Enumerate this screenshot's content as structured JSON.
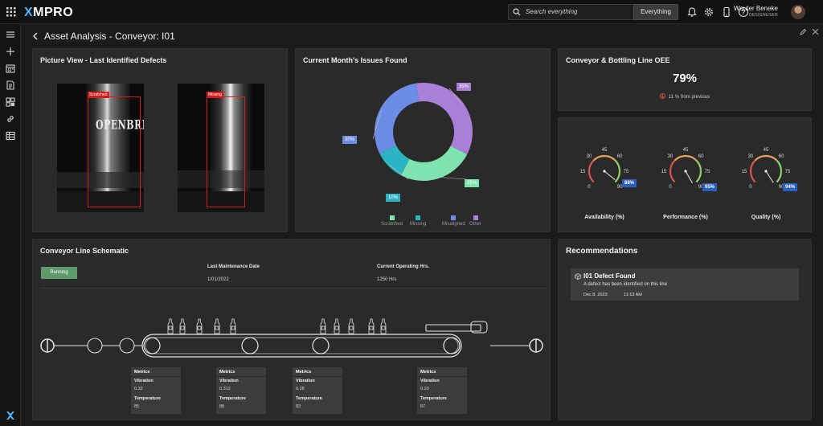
{
  "app": {
    "logo": "MPRO",
    "logo_x": "X"
  },
  "search": {
    "placeholder": "Search everything",
    "scope": "Everything"
  },
  "user": {
    "name": "Wouter Beneke",
    "role": "DESIGNUSER"
  },
  "page": {
    "title": "Asset Analysis - Conveyor: I01"
  },
  "picture_view": {
    "title": "Picture View - Last Identified Defects",
    "images": [
      {
        "tag": "Scratched",
        "label_text": "OPENBREW"
      },
      {
        "tag": "Missing"
      }
    ]
  },
  "issues": {
    "title": "Current Month's Issues Found",
    "colors": {
      "Scratched": "#7fe3b0",
      "Missing": "#2bb5c4",
      "Misaligned": "#6b8de6",
      "Other": "#a97fd8"
    }
  },
  "chart_data": {
    "type": "pie",
    "title": "Current Month's Issues Found",
    "categories": [
      "Scratched",
      "Missing",
      "Misaligned",
      "Other"
    ],
    "values": [
      25,
      10,
      30,
      35
    ],
    "labels": [
      "25%",
      "10%",
      "30%",
      "35%"
    ],
    "legend_position": "bottom"
  },
  "oee": {
    "title": "Conveyor & Bottling Line OEE",
    "value": "79%",
    "change_note": "11 % from previous",
    "gauges": [
      {
        "label": "Availability (%)",
        "value": 88,
        "badge": "88%"
      },
      {
        "label": "Performance (%)",
        "value": 95,
        "badge": "95%"
      },
      {
        "label": "Quality (%)",
        "value": 94,
        "badge": "94%"
      }
    ],
    "ticks": [
      "0",
      "15",
      "30",
      "45",
      "60",
      "75",
      "90"
    ]
  },
  "schematic": {
    "title": "Conveyor Line Schematic",
    "status": "Running",
    "maintenance_label": "Last Maintenance Date",
    "maintenance_value": "1/01/2022",
    "hours_label": "Current Operating Hrs.",
    "hours_value": "1250 Hrs",
    "metrics_title": "Metrics",
    "vibration_label": "Vibration",
    "temperature_label": "Temperature",
    "metrics": [
      {
        "vibration": "0.32",
        "temperature": "85"
      },
      {
        "vibration": "0.312",
        "temperature": "88"
      },
      {
        "vibration": "0.28",
        "temperature": "83"
      },
      {
        "vibration": "0.23",
        "temperature": "87"
      }
    ]
  },
  "recommendations": {
    "title": "Recommendations",
    "items": [
      {
        "title": "I01 Defect Found",
        "description": "A defect has been identified on this line",
        "date": "Dec 8, 2023",
        "time": "11:13 AM"
      }
    ]
  }
}
